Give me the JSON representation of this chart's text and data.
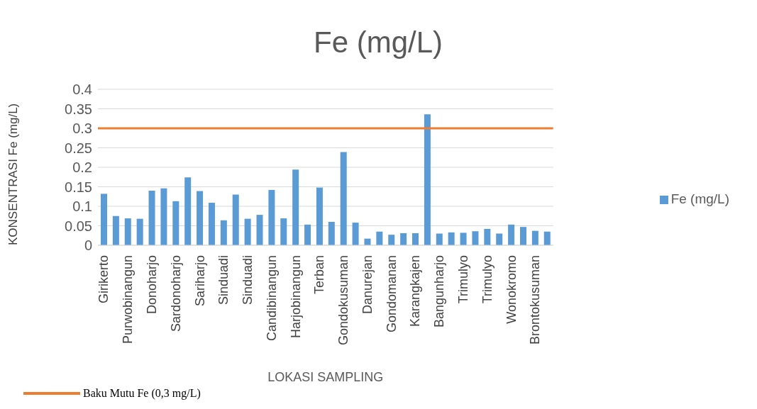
{
  "chart_data": {
    "type": "bar",
    "title": "Fe (mg/L)",
    "xlabel": "LOKASI SAMPLING",
    "ylabel": "KONSENTRASI Fe (mg/L)",
    "categories": [
      "Girikerto",
      null,
      "Purwobinangun",
      null,
      "Donoharjo",
      null,
      "Sardonoharjo",
      null,
      "Sariharjo",
      null,
      "Sinduadi",
      null,
      "Sinduadi",
      null,
      "Candibinangun",
      null,
      "Harjobinangun",
      null,
      "Terban",
      null,
      "Gondokusuman",
      null,
      "Danurejan",
      null,
      "Gondomanan",
      null,
      "Karangkajen",
      null,
      "Bangunharjo",
      null,
      "Trimulyo",
      null,
      "Trimulyo",
      null,
      "Wonokromo",
      null,
      "Brontokusuman",
      null
    ],
    "series": [
      {
        "name": "Fe (mg/L)",
        "color": "#5b9bd5",
        "values": [
          0.132,
          0.075,
          0.069,
          0.068,
          0.14,
          0.146,
          0.113,
          0.174,
          0.139,
          0.109,
          0.064,
          0.13,
          0.068,
          0.078,
          0.142,
          0.069,
          0.194,
          0.053,
          0.148,
          0.06,
          0.239,
          0.058,
          0.017,
          0.035,
          0.027,
          0.031,
          0.031,
          0.336,
          0.03,
          0.033,
          0.032,
          0.036,
          0.042,
          0.03,
          0.053,
          0.047,
          0.037,
          0.035
        ]
      }
    ],
    "ylim": [
      0,
      0.4
    ],
    "yticks": [
      0,
      {
        "value": 0.05,
        "label": "0.05"
      },
      {
        "value": 0.1,
        "label": "0.1"
      },
      {
        "value": 0.15,
        "label": "0.15"
      },
      {
        "value": 0.2,
        "label": "0.2"
      },
      {
        "value": 0.25,
        "label": "0.25"
      },
      {
        "value": 0.3,
        "label": "0.3"
      },
      {
        "value": 0.35,
        "label": "0.35"
      },
      {
        "value": 0.4,
        "label": "0.4"
      }
    ],
    "ref_lines": [
      {
        "axis": "y",
        "value": 0.3,
        "label": "Baku Mutu Fe (0,3 mg/L)",
        "color": "#ed7d31"
      }
    ],
    "grid": "y",
    "legend": "right"
  }
}
